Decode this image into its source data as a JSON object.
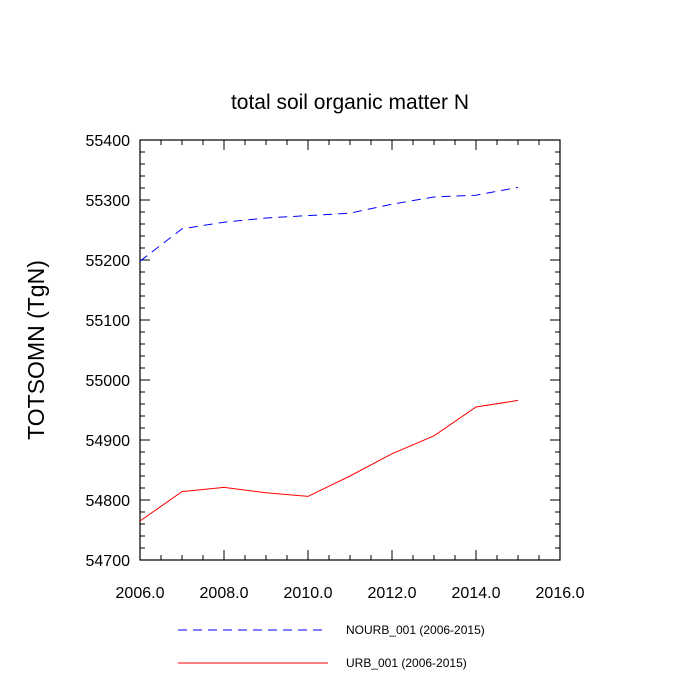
{
  "chart_data": {
    "type": "line",
    "title": "total soil organic matter N",
    "xlabel": "",
    "ylabel": "TOTSOMN  (TgN)",
    "xlim": [
      2006.0,
      2016.0
    ],
    "ylim": [
      54700,
      55400
    ],
    "x_ticks": [
      2006.0,
      2008.0,
      2010.0,
      2012.0,
      2014.0,
      2016.0
    ],
    "x_tick_labels": [
      "2006.0",
      "2008.0",
      "2010.0",
      "2012.0",
      "2014.0",
      "2016.0"
    ],
    "y_ticks": [
      54700,
      54800,
      54900,
      55000,
      55100,
      55200,
      55300,
      55400
    ],
    "y_tick_labels": [
      "54700",
      "54800",
      "54900",
      "55000",
      "55100",
      "55200",
      "55300",
      "55400"
    ],
    "x": [
      2006,
      2007,
      2008,
      2009,
      2010,
      2011,
      2012,
      2013,
      2014,
      2015
    ],
    "series": [
      {
        "name": "NOURB_001 (2006-2015)",
        "color": "#0000ff",
        "style": "dashed",
        "values": [
          55198,
          55252,
          55263,
          55270,
          55274,
          55278,
          55293,
          55305,
          55308,
          55321
        ]
      },
      {
        "name": "URB_001 (2006-2015)",
        "color": "#ff0000",
        "style": "solid",
        "values": [
          54765,
          54814,
          54821,
          54812,
          54806,
          54840,
          54877,
          54907,
          54955,
          54966
        ]
      }
    ],
    "legend_position": "bottom"
  }
}
